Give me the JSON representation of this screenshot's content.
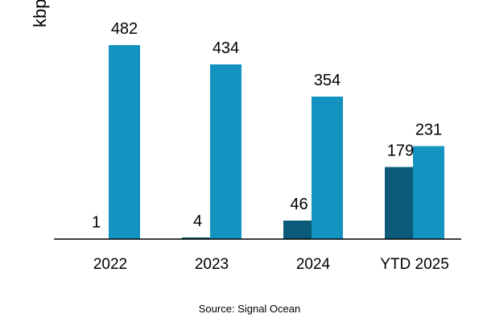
{
  "chart_data": {
    "type": "bar",
    "categories": [
      "2022",
      "2023",
      "2024",
      "YTD 2025"
    ],
    "series": [
      {
        "values": [
          1,
          4,
          46,
          179
        ],
        "color": "#0b5a7a"
      },
      {
        "values": [
          482,
          434,
          354,
          231
        ],
        "color": "#1493c0"
      }
    ],
    "ylabel": "kbp",
    "ylim": [
      0,
      560
    ],
    "grid": false,
    "axis_color": "#000000"
  },
  "source": "Source: Signal Ocean"
}
